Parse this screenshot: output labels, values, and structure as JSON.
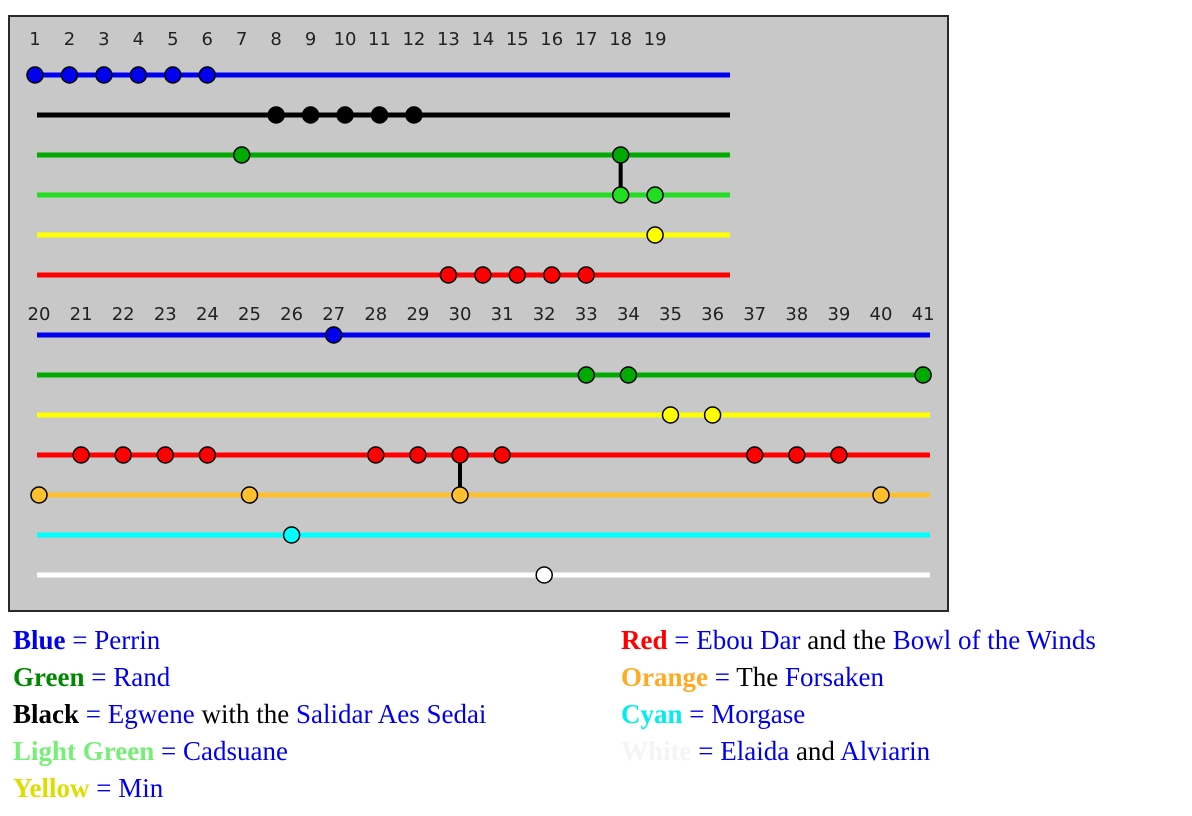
{
  "timeline": {
    "top_numbers": [
      "1",
      "2",
      "3",
      "4",
      "5",
      "6",
      "7",
      "8",
      "9",
      "10",
      "11",
      "12",
      "13",
      "14",
      "15",
      "16",
      "17",
      "18",
      "19"
    ],
    "bottom_numbers": [
      "20",
      "21",
      "22",
      "23",
      "24",
      "25",
      "26",
      "27",
      "28",
      "29",
      "30",
      "31",
      "32",
      "33",
      "34",
      "35",
      "36",
      "37",
      "38",
      "39",
      "40",
      "41"
    ],
    "top_tracks": [
      {
        "color": "#0000ee",
        "dots": [
          1,
          2,
          3,
          4,
          5,
          6
        ]
      },
      {
        "color": "#000000",
        "dots": [
          8,
          9,
          10,
          11,
          12
        ]
      },
      {
        "color": "#00aa00",
        "dots": [
          7,
          18
        ]
      },
      {
        "color": "#22dd22",
        "dots": [
          18,
          19
        ]
      },
      {
        "color": "#ffff00",
        "dots": [
          19
        ]
      },
      {
        "color": "#ff0000",
        "dots": [
          13,
          14,
          15,
          16,
          17
        ]
      }
    ],
    "top_links": [
      {
        "number": 18,
        "from_track": 2,
        "to_track": 3
      }
    ],
    "bottom_tracks": [
      {
        "color": "#0000ee",
        "dots": [
          27
        ]
      },
      {
        "color": "#00aa00",
        "dots": [
          33,
          34,
          41
        ]
      },
      {
        "color": "#ffff00",
        "dots": [
          35,
          36
        ]
      },
      {
        "color": "#ff0000",
        "dots": [
          21,
          22,
          23,
          24,
          28,
          29,
          30,
          31,
          37,
          38,
          39
        ]
      },
      {
        "color": "#ffc030",
        "dots": [
          20,
          25,
          30,
          40
        ]
      },
      {
        "color": "#00ffff",
        "dots": [
          26
        ]
      },
      {
        "color": "#ffffff",
        "dots": [
          32
        ]
      }
    ],
    "bottom_links": [
      {
        "number": 30,
        "from_track": 3,
        "to_track": 4
      }
    ]
  },
  "legend": {
    "left": [
      {
        "key": "Blue",
        "key_color": "#0000ee",
        "parts": [
          {
            "text": "Perrin",
            "color": "#0000ee"
          }
        ]
      },
      {
        "key": "Green",
        "key_color": "#008800",
        "parts": [
          {
            "text": "Rand",
            "color": "#0000ee"
          }
        ]
      },
      {
        "key": "Black",
        "key_color": "#000000",
        "parts": [
          {
            "text": "Egwene",
            "color": "#0000ee"
          },
          {
            "text": " with the ",
            "color": "#000000"
          },
          {
            "text": "Salidar Aes Sedai",
            "color": "#0000ee"
          }
        ]
      },
      {
        "key": "Light Green",
        "key_color": "#77ee77",
        "parts": [
          {
            "text": "Cadsuane",
            "color": "#0000ee"
          }
        ]
      },
      {
        "key": "Yellow",
        "key_color": "#dddd00",
        "parts": [
          {
            "text": "Min",
            "color": "#0000ee"
          }
        ]
      }
    ],
    "right": [
      {
        "key": "Red",
        "key_color": "#ff0000",
        "parts": [
          {
            "text": "Ebou Dar",
            "color": "#0000ee"
          },
          {
            "text": " and the ",
            "color": "#000000"
          },
          {
            "text": "Bowl of the Winds",
            "color": "#0000ee"
          }
        ]
      },
      {
        "key": "Orange",
        "key_color": "#ffaa22",
        "parts": [
          {
            "text": "The ",
            "color": "#000000"
          },
          {
            "text": "Forsaken",
            "color": "#0000ee"
          }
        ]
      },
      {
        "key": "Cyan",
        "key_color": "#00eeee",
        "parts": [
          {
            "text": "Morgase",
            "color": "#0000ee"
          }
        ]
      },
      {
        "key": "White",
        "key_color": "#f4f4f4",
        "parts": [
          {
            "text": "Elaida",
            "color": "#0000ee"
          },
          {
            "text": " and ",
            "color": "#000000"
          },
          {
            "text": "Alviarin",
            "color": "#0000ee"
          }
        ]
      }
    ],
    "equals": "="
  }
}
